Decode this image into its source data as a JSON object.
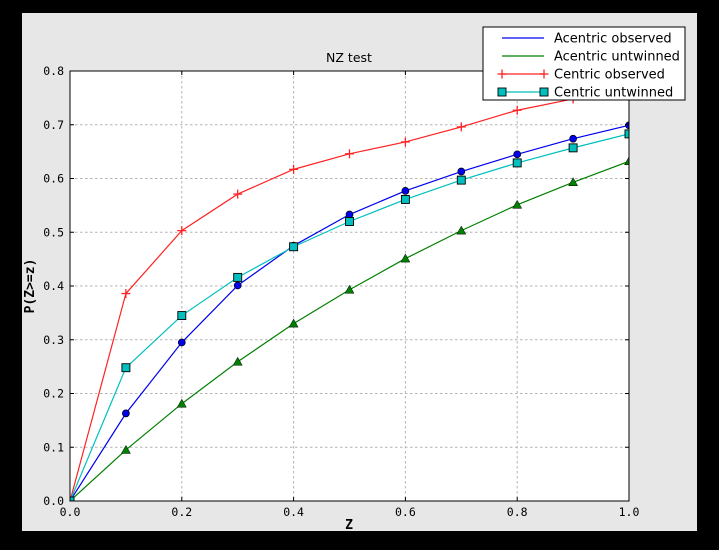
{
  "window": {
    "outer_background": "#000000",
    "figure_background": "#e7e7e7",
    "plot_background": "#ffffff",
    "grid_color": "#b3b3b3"
  },
  "chart_data": {
    "type": "line",
    "title": "NZ test",
    "xlabel": "Z",
    "ylabel": "P(Z>=z)",
    "xlim": [
      0.0,
      1.0
    ],
    "ylim": [
      0.0,
      0.8
    ],
    "x_ticks": [
      "0.0",
      "0.2",
      "0.4",
      "0.6",
      "0.8",
      "1.0"
    ],
    "y_ticks": [
      "0.0",
      "0.1",
      "0.2",
      "0.3",
      "0.4",
      "0.5",
      "0.6",
      "0.7",
      "0.8"
    ],
    "grid": true,
    "legend_position": "upper right",
    "x": [
      0.0,
      0.1,
      0.2,
      0.3,
      0.4,
      0.5,
      0.6,
      0.7,
      0.8,
      0.9,
      1.0
    ],
    "series": [
      {
        "name": "Acentric observed",
        "color": "#0000ee",
        "marker": "circle",
        "legend_marker": false,
        "values": [
          0.0,
          0.163,
          0.295,
          0.401,
          0.475,
          0.533,
          0.577,
          0.613,
          0.645,
          0.674,
          0.699
        ]
      },
      {
        "name": "Acentric untwinned",
        "color": "#008000",
        "marker": "triangle",
        "legend_marker": false,
        "values": [
          0.0,
          0.095,
          0.181,
          0.259,
          0.33,
          0.393,
          0.451,
          0.503,
          0.551,
          0.593,
          0.632
        ]
      },
      {
        "name": "Centric observed",
        "color": "#ff2222",
        "marker": "plus",
        "legend_marker": true,
        "values": [
          0.0,
          0.386,
          0.503,
          0.571,
          0.617,
          0.646,
          0.668,
          0.696,
          0.727,
          0.748,
          0.77
        ]
      },
      {
        "name": "Centric untwinned",
        "color": "#00bfbf",
        "marker": "square",
        "legend_marker": true,
        "values": [
          0.0,
          0.248,
          0.345,
          0.416,
          0.473,
          0.52,
          0.561,
          0.597,
          0.629,
          0.657,
          0.683
        ]
      }
    ]
  }
}
